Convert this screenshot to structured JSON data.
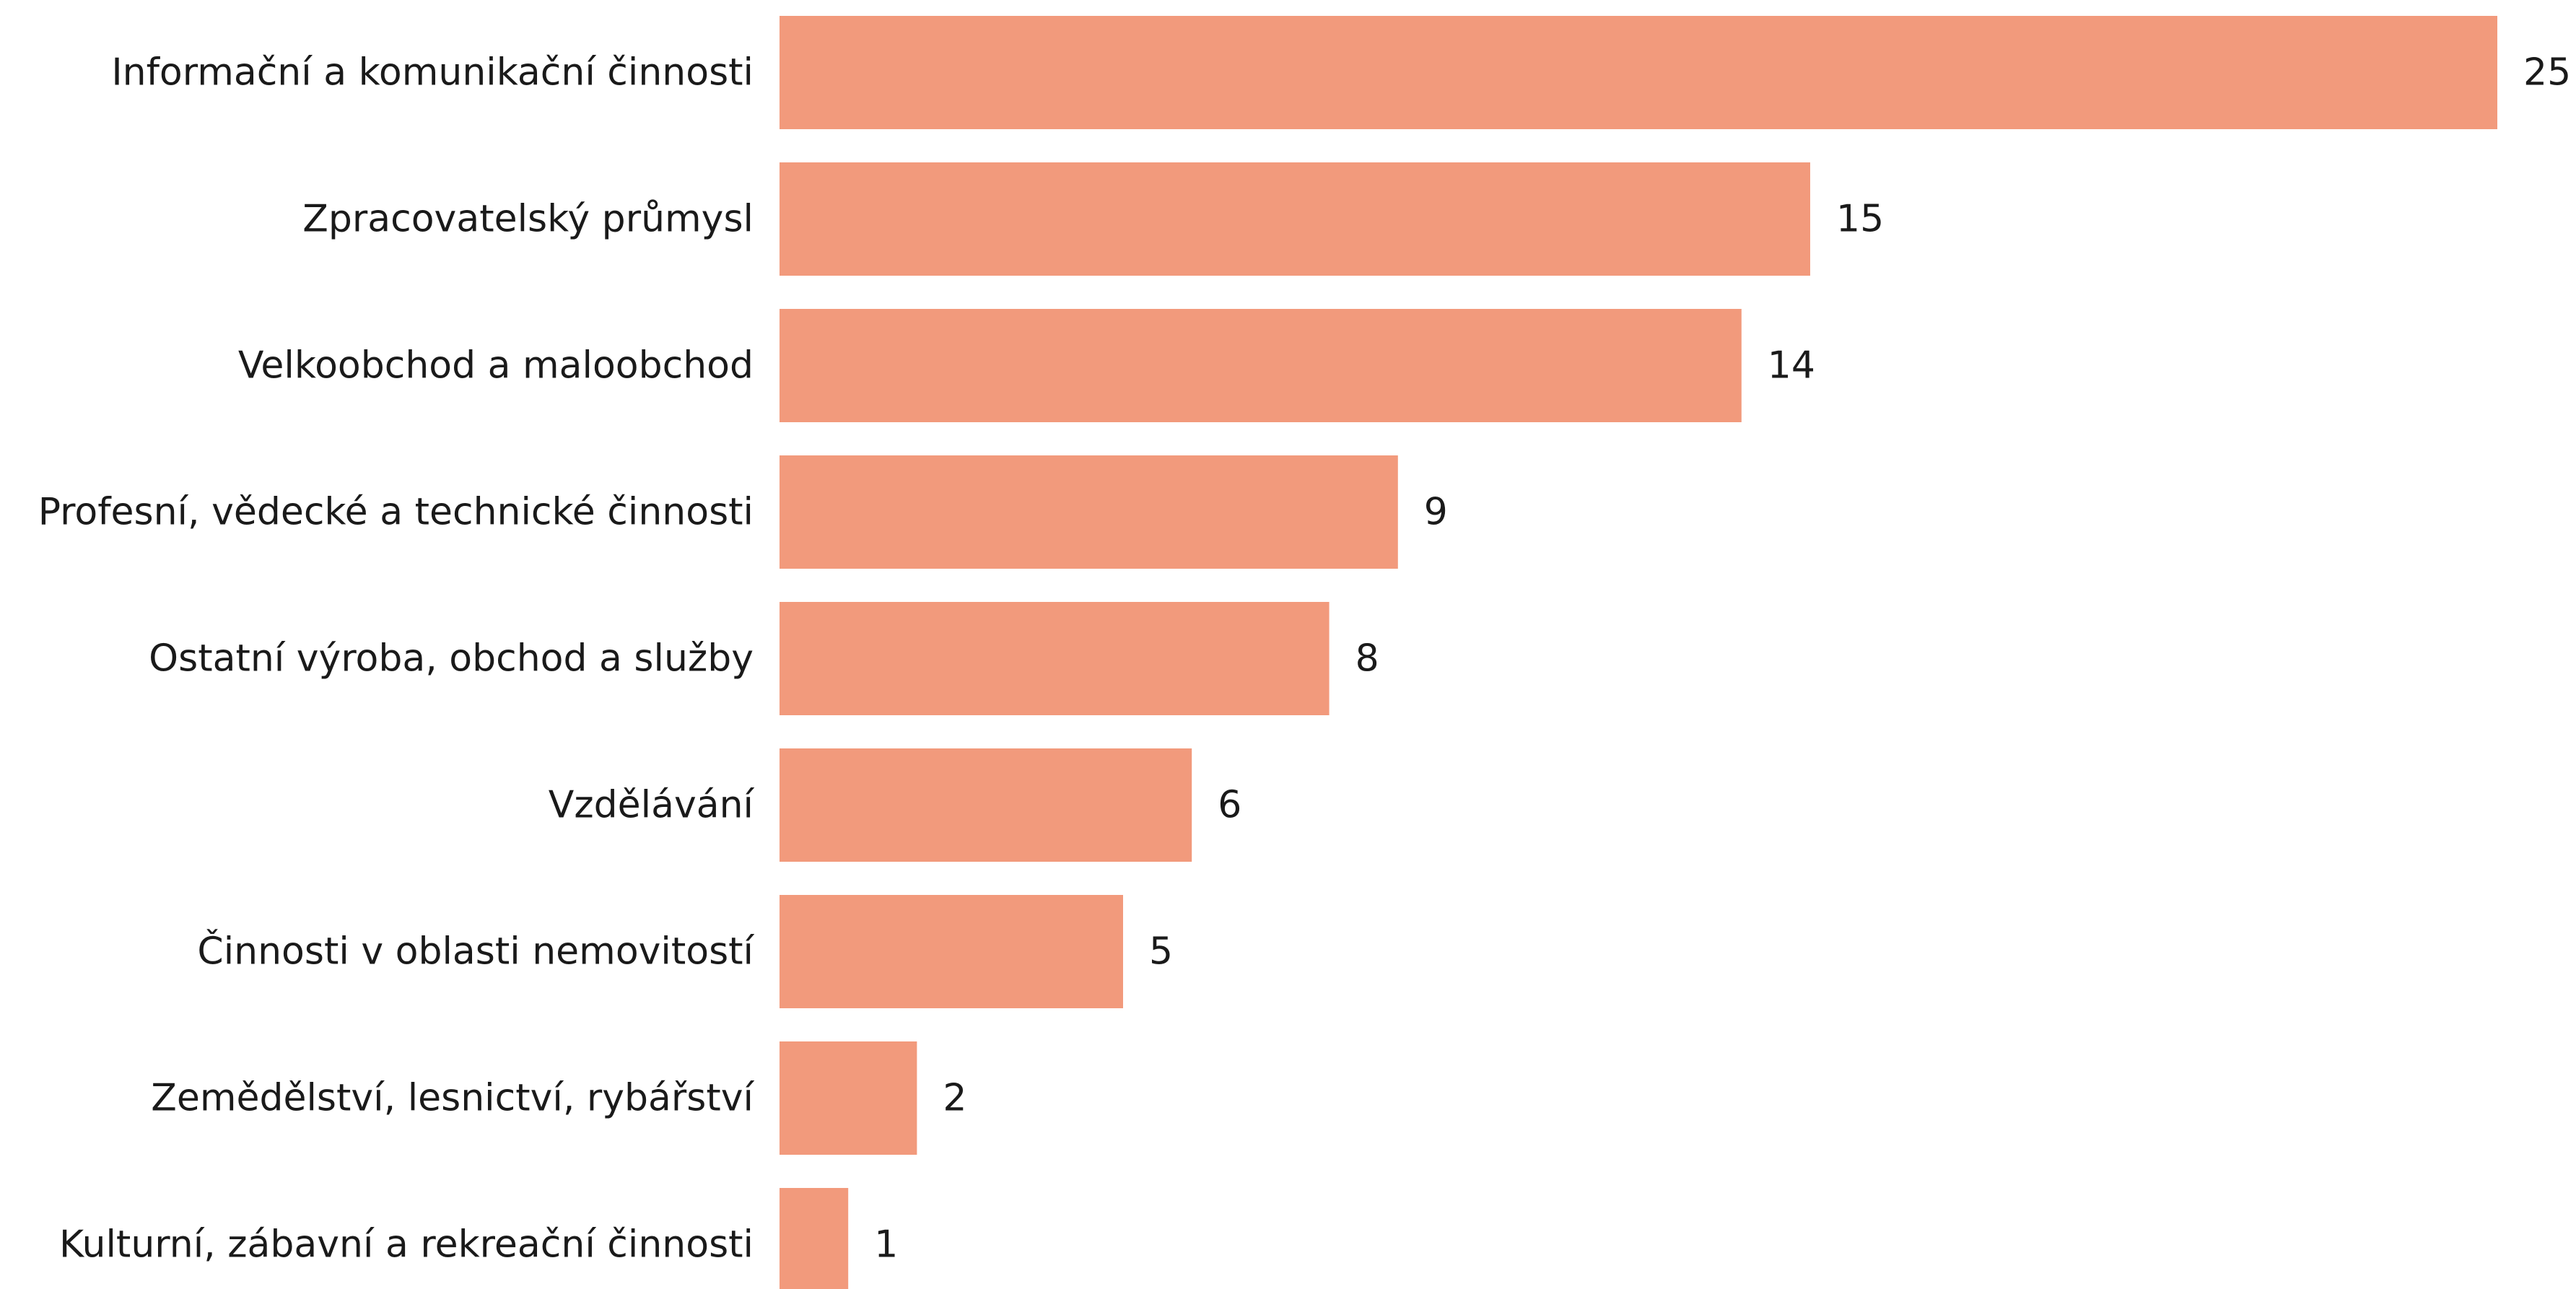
{
  "chart_data": {
    "type": "bar",
    "orientation": "horizontal",
    "categories": [
      "Informační a komunikační činnosti",
      "Zpracovatelský průmysl",
      "Velkoobchod a maloobchod",
      "Profesní, vědecké a technické činnosti",
      "Ostatní výroba, obchod a služby",
      "Vzdělávání",
      "Činnosti v oblasti nemovitostí",
      "Zemědělství, lesnictví, rybářství",
      "Kulturní, zábavní a rekreační činnosti"
    ],
    "values": [
      25,
      15,
      14,
      9,
      8,
      6,
      5,
      2,
      1
    ],
    "value_labels": [
      "25",
      "15",
      "14",
      "9",
      "8",
      "6",
      "5",
      "2",
      "1"
    ],
    "xlim": [
      0,
      25
    ],
    "grid": false,
    "bar_color": "#f29a7c",
    "title": "",
    "xlabel": "",
    "ylabel": ""
  }
}
